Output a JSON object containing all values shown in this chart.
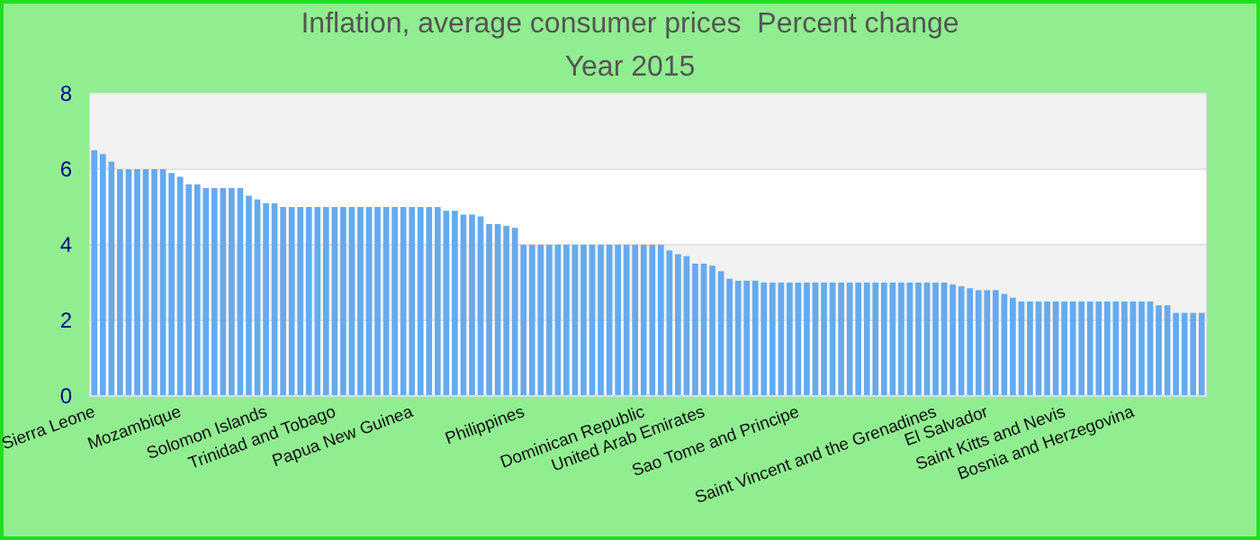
{
  "chart_data": {
    "type": "bar",
    "title": "Inflation, average consumer prices  Percent change",
    "subtitle": "Year 2015",
    "categories": [
      "Sierra Leone",
      null,
      null,
      null,
      null,
      null,
      null,
      null,
      null,
      null,
      "Mozambique",
      null,
      null,
      null,
      null,
      null,
      null,
      null,
      null,
      null,
      "Solomon Islands",
      null,
      null,
      null,
      null,
      null,
      null,
      null,
      "Trinidad and Tobago",
      null,
      null,
      null,
      null,
      null,
      null,
      null,
      null,
      "Papua New Guinea",
      null,
      null,
      null,
      null,
      null,
      null,
      null,
      null,
      null,
      null,
      null,
      null,
      "Philippines",
      null,
      null,
      null,
      null,
      null,
      null,
      null,
      null,
      null,
      null,
      null,
      null,
      null,
      "Dominican Republic",
      null,
      null,
      null,
      null,
      null,
      null,
      "United Arab Emirates",
      null,
      null,
      null,
      null,
      null,
      null,
      null,
      null,
      null,
      null,
      "Sao Tome and Principe",
      null,
      null,
      null,
      null,
      null,
      null,
      null,
      null,
      null,
      null,
      null,
      null,
      null,
      null,
      null,
      "Saint Vincent and the Grenadines",
      null,
      null,
      null,
      null,
      null,
      "El Salvador",
      null,
      null,
      null,
      null,
      null,
      null,
      null,
      null,
      "Saint Kitts and Nevis",
      null,
      null,
      null,
      null,
      null,
      null,
      null,
      "Bosnia and Herzegovina",
      null,
      null,
      null,
      null,
      null,
      null,
      null,
      null
    ],
    "values": [
      6.5,
      6.4,
      6.2,
      6,
      6,
      6,
      6,
      6,
      6,
      5.9,
      5.8,
      5.6,
      5.6,
      5.5,
      5.5,
      5.5,
      5.5,
      5.5,
      5.3,
      5.2,
      5.1,
      5.1,
      5,
      5,
      5,
      5,
      5,
      5,
      5,
      5,
      5,
      5,
      5,
      5,
      5,
      5,
      5,
      5,
      5,
      5,
      5,
      4.9,
      4.9,
      4.8,
      4.8,
      4.75,
      4.55,
      4.55,
      4.5,
      4.45,
      4,
      4,
      4,
      4,
      4,
      4,
      4,
      4,
      4,
      4,
      4,
      4,
      4,
      4,
      4,
      4,
      4,
      3.85,
      3.75,
      3.7,
      3.5,
      3.5,
      3.45,
      3.3,
      3.1,
      3.05,
      3.05,
      3.05,
      3,
      3,
      3,
      3,
      3,
      3,
      3,
      3,
      3,
      3,
      3,
      3,
      3,
      3,
      3,
      3,
      3,
      3,
      3,
      3,
      3,
      3,
      2.95,
      2.9,
      2.85,
      2.8,
      2.8,
      2.8,
      2.7,
      2.6,
      2.5,
      2.5,
      2.5,
      2.5,
      2.5,
      2.5,
      2.5,
      2.5,
      2.5,
      2.5,
      2.5,
      2.5,
      2.5,
      2.5,
      2.5,
      2.5,
      2.4,
      2.4,
      2.2,
      2.2,
      2.2,
      2.2
    ],
    "color": "#66aaee",
    "ylim": [
      0,
      8
    ],
    "yticks": [
      0,
      2,
      4,
      6,
      8
    ],
    "grid": "y"
  }
}
